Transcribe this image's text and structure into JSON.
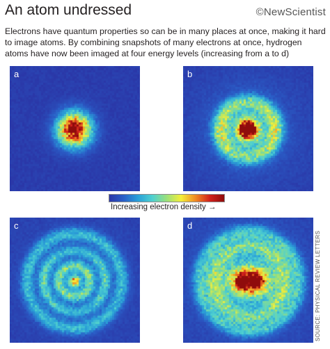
{
  "title": "An atom undressed",
  "brand": "©NewScientist",
  "intro": "Electrons have quantum properties so can be in many places at once, making it hard to image atoms. By combining snapshots of many electrons at once, hydrogen atoms have now been imaged at four energy levels (increasing from a to d)",
  "colors": {
    "background": "#2b37a8",
    "colormap": [
      "#2b37a8",
      "#2a5fc8",
      "#2aa0d8",
      "#4fd0d0",
      "#9be07a",
      "#f4ef3a",
      "#f08a24",
      "#d1201c",
      "#8f0c0c"
    ]
  },
  "panels": [
    {
      "label": "a",
      "pattern": "single central blob"
    },
    {
      "label": "b",
      "pattern": "bright core with one ring"
    },
    {
      "label": "c",
      "pattern": "small core with two rings"
    },
    {
      "label": "d",
      "pattern": "bright wide core with outer rings"
    }
  ],
  "colorbar": {
    "caption": "Increasing electron density →"
  },
  "source": "SOURCE: PHYSICAL REVIEW LETTERS"
}
